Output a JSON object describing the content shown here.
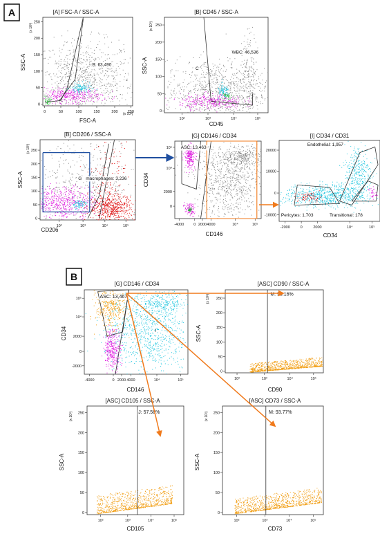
{
  "panel_labels": [
    "A",
    "B"
  ],
  "colors": {
    "gray": "#8a8a8a",
    "magenta": "#e020e0",
    "cyan": "#28c8e0",
    "green": "#20c030",
    "red": "#e01010",
    "orange": "#f2a11a",
    "arrow_orange": "#f07a1c",
    "arrow_blue": "#1f4fa0",
    "gate_blue": "#1f4fa0"
  },
  "chart_data": [
    {
      "id": "A1",
      "type": "scatter",
      "title": "[A] FSC-A / SSC-A",
      "xlabel": "FSC-A",
      "ylabel": "SSC-A",
      "xunit": "(x 10³)",
      "yunit": "(x 10³)",
      "xticks": [
        "0",
        "50",
        "100",
        "150",
        "200",
        "250"
      ],
      "yticks": [
        "0",
        "50",
        "100",
        "150",
        "200",
        "250"
      ],
      "gates": [
        {
          "name": "B",
          "label": "B: 63,490"
        }
      ],
      "populations": [
        "gray",
        "magenta",
        "cyan",
        "green"
      ]
    },
    {
      "id": "A2",
      "type": "scatter",
      "title": "[B] CD45 / SSC-A",
      "xlabel": "CD45",
      "ylabel": "SSC-A",
      "yunit": "(x 10³)",
      "xticks": [
        "10²",
        "10³",
        "10⁴",
        "10⁵"
      ],
      "yticks": [
        "0",
        "50",
        "100",
        "150",
        "200",
        "250"
      ],
      "gates": [
        {
          "name": "C",
          "label": "C"
        },
        {
          "name": "WBC",
          "label": "WBC: 46,536"
        }
      ],
      "populations": [
        "gray",
        "magenta",
        "cyan",
        "green"
      ]
    },
    {
      "id": "A3",
      "type": "scatter",
      "title": "[B] CD206 / SSC-A",
      "xlabel": "CD206",
      "ylabel": "SSC-A",
      "yunit": "(x 10³)",
      "xticks": [
        "10²",
        "10³",
        "10⁴",
        "10⁵"
      ],
      "yticks": [
        "0",
        "50",
        "100",
        "150",
        "200",
        "250"
      ],
      "gates": [
        {
          "name": "G",
          "label": "G"
        },
        {
          "name": "macrophages",
          "label": "macrophages: 3,236"
        }
      ],
      "populations": [
        "gray",
        "magenta",
        "cyan",
        "red"
      ]
    },
    {
      "id": "A4",
      "type": "scatter",
      "title": "[G] CD146 / CD34",
      "xlabel": "CD146",
      "ylabel": "CD34",
      "xticks": [
        "-4000",
        "0",
        "2000",
        "4000",
        "10⁴",
        "10⁵"
      ],
      "yticks": [
        "0",
        "2000",
        "10⁴",
        "10⁵"
      ],
      "gates": [
        {
          "name": "ASC",
          "label": "ASC: 13,463"
        },
        {
          "name": "I",
          "label": "I"
        }
      ],
      "populations": [
        "gray",
        "magenta",
        "green"
      ]
    },
    {
      "id": "A5",
      "type": "scatter",
      "title": "[I] CD34 / CD31",
      "xlabel": "CD34",
      "ylabel": "",
      "xticks": [
        "-2000",
        "0",
        "2000",
        "10⁴",
        "10⁵"
      ],
      "yticks": [
        "-10000",
        "0",
        "10000",
        "20000"
      ],
      "gates": [
        {
          "name": "Endothelial",
          "label": "Endothelial: 1,957"
        },
        {
          "name": "Pericytes",
          "label": "Pericytes: 1,703"
        },
        {
          "name": "Transitional",
          "label": "Transitional: 178"
        }
      ],
      "populations": [
        "cyan",
        "red",
        "magenta"
      ]
    },
    {
      "id": "B1",
      "type": "scatter",
      "title": "[G] CD146 / CD34",
      "xlabel": "CD146",
      "ylabel": "CD34",
      "xticks": [
        "-4000",
        "0",
        "2000",
        "4000",
        "10⁴",
        "10⁵"
      ],
      "yticks": [
        "-2000",
        "0",
        "2000",
        "10⁴",
        "10⁵"
      ],
      "gates": [
        {
          "name": "ASC",
          "label": "ASC: 13,467"
        },
        {
          "name": "I",
          "label": "I"
        }
      ],
      "populations": [
        "orange",
        "cyan",
        "magenta"
      ]
    },
    {
      "id": "B2",
      "type": "scatter",
      "title": "[ASC] CD90 / SSC-A",
      "xlabel": "CD90",
      "ylabel": "SSC-A",
      "yunit": "(x 10³)",
      "xticks": [
        "10²",
        "10³",
        "10⁴",
        "10⁵"
      ],
      "yticks": [
        "0",
        "50",
        "100",
        "150",
        "200",
        "250"
      ],
      "gates": [
        {
          "name": "M",
          "label": "M: 95.16%",
          "percent": 95.16
        }
      ],
      "populations": [
        "orange"
      ]
    },
    {
      "id": "B3",
      "type": "scatter",
      "title": "[ASC] CD105 / SSC-A",
      "xlabel": "CD105",
      "ylabel": "SSC-A",
      "yunit": "(x 10³)",
      "xticks": [
        "10²",
        "10³",
        "10⁴",
        "10⁵"
      ],
      "yticks": [
        "0",
        "50",
        "100",
        "150",
        "200",
        "250"
      ],
      "gates": [
        {
          "name": "J",
          "label": "J: 57.58%",
          "percent": 57.58
        }
      ],
      "populations": [
        "orange"
      ]
    },
    {
      "id": "B4",
      "type": "scatter",
      "title": "[ASC] CD73 / SSC-A",
      "xlabel": "CD73",
      "ylabel": "SSC-A",
      "yunit": "(x 10³)",
      "xticks": [
        "10²",
        "10³",
        "10⁴",
        "10⁵"
      ],
      "yticks": [
        "0",
        "50",
        "100",
        "150",
        "200",
        "250"
      ],
      "gates": [
        {
          "name": "M",
          "label": "M: 93.77%",
          "percent": 93.77
        }
      ],
      "populations": [
        "orange"
      ]
    }
  ]
}
